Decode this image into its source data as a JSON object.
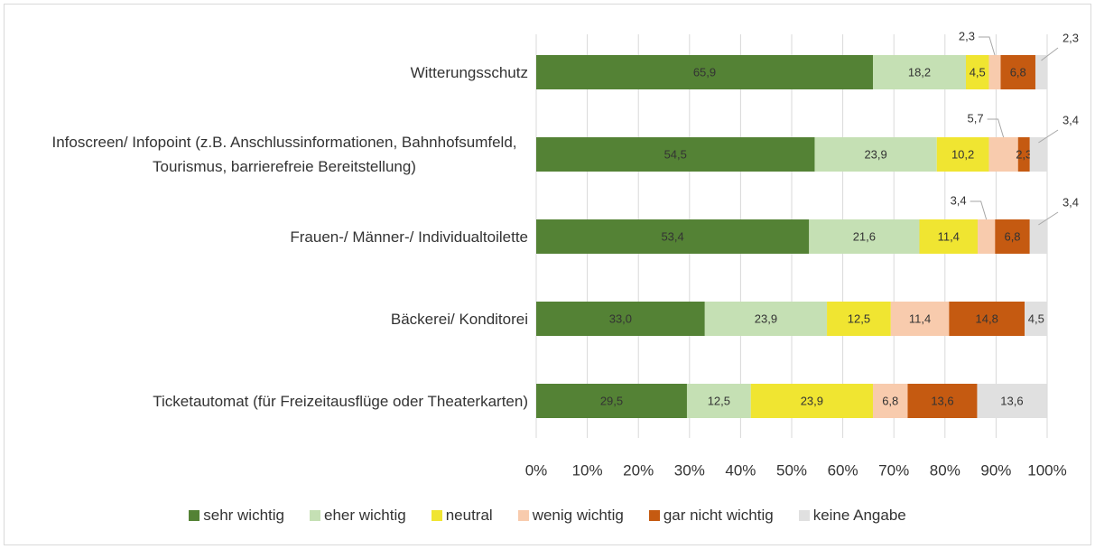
{
  "chart_data": {
    "type": "stacked_barh",
    "categories": [
      "Witterungsschutz",
      "Infoscreen/ Infopoint (z.B. Anschlussinformationen, Bahnhofsumfeld, Tourismus, barrierefreie Bereitstellung)",
      "Frauen-/ Männer-/ Individualtoilette",
      "Bäckerei/ Konditorei",
      "Ticketautomat (für Freizeitausflüge oder Theaterkarten)"
    ],
    "series": [
      {
        "name": "sehr wichtig",
        "color": "#548235",
        "values": [
          65.9,
          54.5,
          53.4,
          33.0,
          29.5
        ],
        "value_labels": [
          "65,9",
          "54,5",
          "53,4",
          "33,0",
          "29,5"
        ]
      },
      {
        "name": "eher wichtig",
        "color": "#c5e0b4",
        "values": [
          18.2,
          23.9,
          21.6,
          23.9,
          12.5
        ],
        "value_labels": [
          "18,2",
          "23,9",
          "21,6",
          "23,9",
          "12,5"
        ]
      },
      {
        "name": "neutral",
        "color": "#f0e531",
        "values": [
          4.5,
          10.2,
          11.4,
          12.5,
          23.9
        ],
        "value_labels": [
          "4,5",
          "10,2",
          "11,4",
          "12,5",
          "23,9"
        ]
      },
      {
        "name": "wenig wichtig",
        "color": "#f8cbad",
        "values": [
          2.3,
          5.7,
          3.4,
          11.4,
          6.8
        ],
        "value_labels": [
          "2,3",
          "5,7",
          "3,4",
          "11,4",
          "6,8"
        ]
      },
      {
        "name": "gar nicht wichtig",
        "color": "#c55a11",
        "values": [
          6.8,
          2.3,
          6.8,
          14.8,
          13.6
        ],
        "value_labels": [
          "6,8",
          "2,3",
          "6,8",
          "14,8",
          "13,6"
        ]
      },
      {
        "name": "keine Angabe",
        "color": "#e0e0e0",
        "values": [
          2.3,
          3.4,
          3.4,
          4.5,
          13.6
        ],
        "value_labels": [
          "2,3",
          "3,4",
          "3,4",
          "4,5",
          "13,6"
        ]
      }
    ],
    "xlim": [
      0,
      100
    ],
    "xticks": [
      {
        "value": 0,
        "label": "0%"
      },
      {
        "value": 10,
        "label": "10%"
      },
      {
        "value": 20,
        "label": "20%"
      },
      {
        "value": 30,
        "label": "30%"
      },
      {
        "value": 40,
        "label": "40%"
      },
      {
        "value": 50,
        "label": "50%"
      },
      {
        "value": 60,
        "label": "60%"
      },
      {
        "value": 70,
        "label": "70%"
      },
      {
        "value": 80,
        "label": "80%"
      },
      {
        "value": 90,
        "label": "90%"
      },
      {
        "value": 100,
        "label": "100%"
      }
    ],
    "grid": true,
    "legend": "bottom"
  }
}
